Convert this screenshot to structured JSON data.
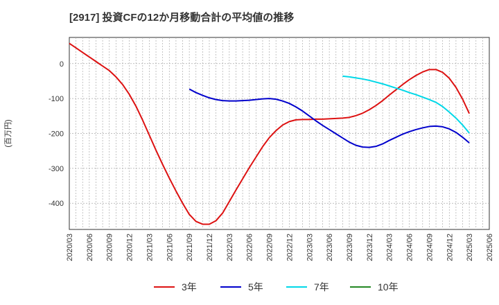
{
  "chart_data": {
    "type": "line",
    "title": "[2917]  投資CFの12か月移動合計の平均値の推移",
    "ylabel": "(百万円)",
    "xlabel": "",
    "ylim": [
      -475,
      75
    ],
    "yticks": [
      0,
      -100,
      -200,
      -300,
      -400
    ],
    "x_ticks": [
      "2020/03",
      "2020/06",
      "2020/09",
      "2020/12",
      "2021/03",
      "2021/06",
      "2021/09",
      "2021/12",
      "2022/03",
      "2022/06",
      "2022/09",
      "2022/12",
      "2023/03",
      "2023/06",
      "2023/09",
      "2023/12",
      "2024/03",
      "2024/06",
      "2024/09",
      "2024/12",
      "2025/03",
      "2025/06"
    ],
    "grid": true,
    "legend_position": "bottom",
    "series": [
      {
        "name": "3年",
        "color": "#dd1111",
        "points": [
          [
            "2020/03",
            58
          ],
          [
            "2020/04",
            45
          ],
          [
            "2020/05",
            32
          ],
          [
            "2020/06",
            19
          ],
          [
            "2020/07",
            6
          ],
          [
            "2020/08",
            -7
          ],
          [
            "2020/09",
            -20
          ],
          [
            "2020/10",
            -38
          ],
          [
            "2020/11",
            -60
          ],
          [
            "2020/12",
            -88
          ],
          [
            "2021/01",
            -122
          ],
          [
            "2021/02",
            -162
          ],
          [
            "2021/03",
            -205
          ],
          [
            "2021/04",
            -248
          ],
          [
            "2021/05",
            -289
          ],
          [
            "2021/06",
            -328
          ],
          [
            "2021/07",
            -365
          ],
          [
            "2021/08",
            -400
          ],
          [
            "2021/09",
            -432
          ],
          [
            "2021/10",
            -452
          ],
          [
            "2021/11",
            -460
          ],
          [
            "2021/12",
            -460
          ],
          [
            "2022/01",
            -450
          ],
          [
            "2022/02",
            -428
          ],
          [
            "2022/03",
            -395
          ],
          [
            "2022/04",
            -362
          ],
          [
            "2022/05",
            -330
          ],
          [
            "2022/06",
            -298
          ],
          [
            "2022/07",
            -268
          ],
          [
            "2022/08",
            -238
          ],
          [
            "2022/09",
            -212
          ],
          [
            "2022/10",
            -192
          ],
          [
            "2022/11",
            -176
          ],
          [
            "2022/12",
            -166
          ],
          [
            "2023/01",
            -161
          ],
          [
            "2023/02",
            -160
          ],
          [
            "2023/03",
            -160
          ],
          [
            "2023/04",
            -159
          ],
          [
            "2023/05",
            -159
          ],
          [
            "2023/06",
            -158
          ],
          [
            "2023/07",
            -157
          ],
          [
            "2023/08",
            -156
          ],
          [
            "2023/09",
            -154
          ],
          [
            "2023/10",
            -149
          ],
          [
            "2023/11",
            -142
          ],
          [
            "2023/12",
            -132
          ],
          [
            "2024/01",
            -120
          ],
          [
            "2024/02",
            -106
          ],
          [
            "2024/03",
            -90
          ],
          [
            "2024/04",
            -75
          ],
          [
            "2024/05",
            -60
          ],
          [
            "2024/06",
            -46
          ],
          [
            "2024/07",
            -34
          ],
          [
            "2024/08",
            -24
          ],
          [
            "2024/09",
            -17
          ],
          [
            "2024/10",
            -17
          ],
          [
            "2024/11",
            -25
          ],
          [
            "2024/12",
            -42
          ],
          [
            "2025/01",
            -68
          ],
          [
            "2025/02",
            -102
          ],
          [
            "2025/03",
            -143
          ]
        ]
      },
      {
        "name": "5年",
        "color": "#0000cc",
        "points": [
          [
            "2021/09",
            -73
          ],
          [
            "2021/10",
            -83
          ],
          [
            "2021/11",
            -91
          ],
          [
            "2021/12",
            -98
          ],
          [
            "2022/01",
            -103
          ],
          [
            "2022/02",
            -106
          ],
          [
            "2022/03",
            -107
          ],
          [
            "2022/04",
            -107
          ],
          [
            "2022/05",
            -106
          ],
          [
            "2022/06",
            -105
          ],
          [
            "2022/07",
            -103
          ],
          [
            "2022/08",
            -101
          ],
          [
            "2022/09",
            -100
          ],
          [
            "2022/10",
            -102
          ],
          [
            "2022/11",
            -107
          ],
          [
            "2022/12",
            -114
          ],
          [
            "2023/01",
            -124
          ],
          [
            "2023/02",
            -136
          ],
          [
            "2023/03",
            -150
          ],
          [
            "2023/04",
            -164
          ],
          [
            "2023/05",
            -177
          ],
          [
            "2023/06",
            -189
          ],
          [
            "2023/07",
            -201
          ],
          [
            "2023/08",
            -213
          ],
          [
            "2023/09",
            -225
          ],
          [
            "2023/10",
            -234
          ],
          [
            "2023/11",
            -239
          ],
          [
            "2023/12",
            -240
          ],
          [
            "2024/01",
            -237
          ],
          [
            "2024/02",
            -230
          ],
          [
            "2024/03",
            -220
          ],
          [
            "2024/04",
            -211
          ],
          [
            "2024/05",
            -202
          ],
          [
            "2024/06",
            -195
          ],
          [
            "2024/07",
            -189
          ],
          [
            "2024/08",
            -184
          ],
          [
            "2024/09",
            -180
          ],
          [
            "2024/10",
            -179
          ],
          [
            "2024/11",
            -181
          ],
          [
            "2024/12",
            -187
          ],
          [
            "2025/01",
            -197
          ],
          [
            "2025/02",
            -211
          ],
          [
            "2025/03",
            -227
          ]
        ]
      },
      {
        "name": "7年",
        "color": "#00d8e8",
        "points": [
          [
            "2023/08",
            -36
          ],
          [
            "2023/09",
            -38
          ],
          [
            "2023/10",
            -41
          ],
          [
            "2023/11",
            -44
          ],
          [
            "2023/12",
            -48
          ],
          [
            "2024/01",
            -53
          ],
          [
            "2024/02",
            -58
          ],
          [
            "2024/03",
            -64
          ],
          [
            "2024/04",
            -70
          ],
          [
            "2024/05",
            -76
          ],
          [
            "2024/06",
            -83
          ],
          [
            "2024/07",
            -89
          ],
          [
            "2024/08",
            -96
          ],
          [
            "2024/09",
            -103
          ],
          [
            "2024/10",
            -111
          ],
          [
            "2024/11",
            -123
          ],
          [
            "2024/12",
            -139
          ],
          [
            "2025/01",
            -156
          ],
          [
            "2025/02",
            -176
          ],
          [
            "2025/03",
            -199
          ]
        ]
      },
      {
        "name": "10年",
        "color": "#228822",
        "points": []
      }
    ]
  }
}
